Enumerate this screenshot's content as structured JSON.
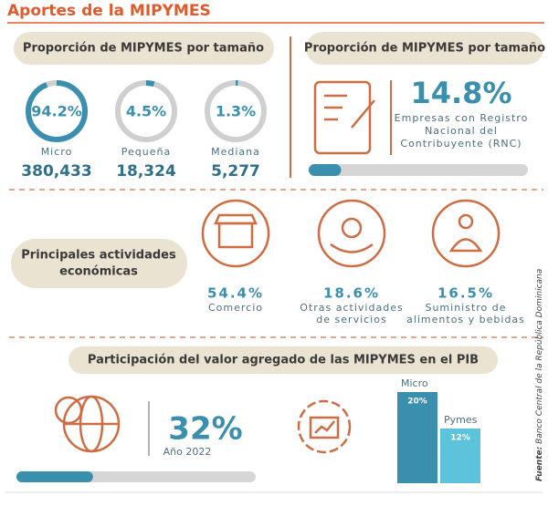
{
  "header": {
    "title": "Aportes de la MIPYMES"
  },
  "size_section": {
    "title": "Proporción de MIPYMES por tamaño",
    "items": [
      {
        "percent": {
          "value": 94.2,
          "label": "94.2%"
        },
        "label": "Micro",
        "count": "380,433"
      },
      {
        "percent": {
          "value": 4.5,
          "label": "4.5%"
        },
        "label": "Pequeña",
        "count": "18,324"
      },
      {
        "percent": {
          "value": 1.3,
          "label": "1.3%"
        },
        "label": "Mediana",
        "count": "5,277"
      }
    ]
  },
  "rnc_section": {
    "title": "Proporción de MIPYMES por tamaño",
    "percent": {
      "value": 14.8,
      "label": "14.8%"
    },
    "caption": [
      "Empresas con Registro",
      "Nacional del",
      "Contribuyente (RNC)"
    ]
  },
  "activities_section": {
    "title": [
      "Principales actividades",
      "económicas"
    ],
    "items": [
      {
        "percent": "54.4%",
        "caption": [
          "Comercio"
        ]
      },
      {
        "percent": "18.6%",
        "caption": [
          "Otras actividades",
          "de servicios"
        ]
      },
      {
        "percent": "16.5%",
        "caption": [
          "Suministro de",
          "alimentos y bebidas"
        ]
      }
    ]
  },
  "gdp_section": {
    "title": "Participación del valor agregado de las MIPYMES en el PIB",
    "percent": {
      "value": 32,
      "label": "32%"
    },
    "year": "Año 2022",
    "bars": [
      {
        "name": "Micro",
        "value": 20,
        "label": "20%"
      },
      {
        "name": "Pymes",
        "value": 12,
        "label": "12%"
      }
    ]
  },
  "source": {
    "prefix": "Fuente:",
    "text": "Banco Central de la República Dominicana"
  }
}
